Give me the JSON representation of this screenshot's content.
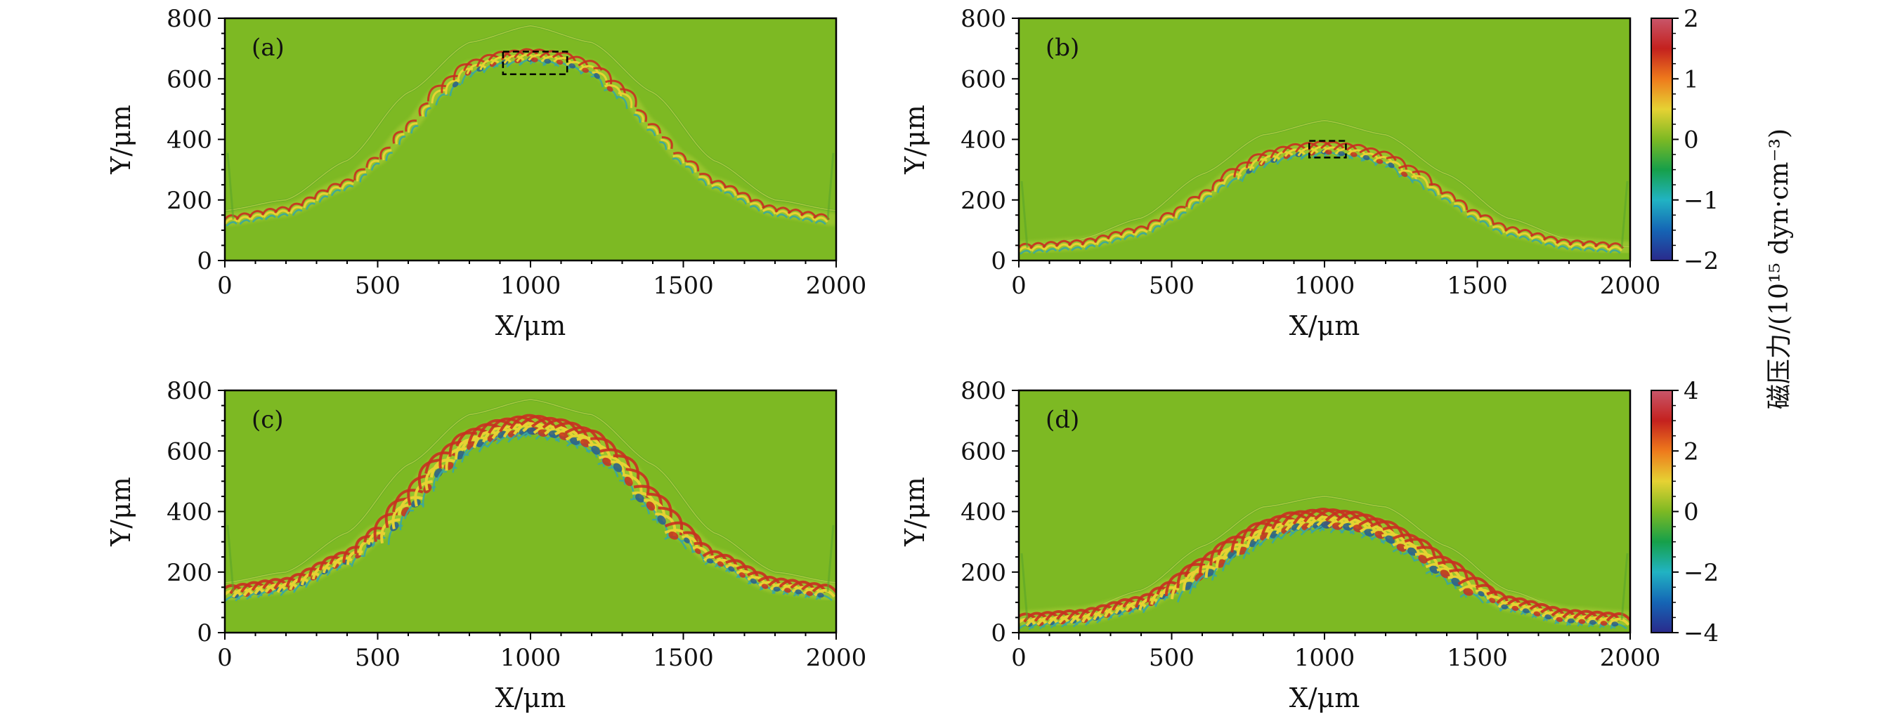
{
  "colors": {
    "background": "#7db923",
    "front": "#e6d233",
    "frontDark": "#2a5e8a",
    "frontRed": "#c83020",
    "frontCyan": "#3aa7a0",
    "cbStops": [
      "#2a2a8c",
      "#1565b5",
      "#21b3c3",
      "#16a04a",
      "#7db923",
      "#e6d233",
      "#ee7a1c",
      "#c4211e",
      "#c8566a"
    ]
  },
  "chart_data": [
    {
      "type": "heatmap",
      "panel": "(a)",
      "xlabel": "X/μm",
      "ylabel": "Y/μm",
      "xlim": [
        0,
        2000
      ],
      "ylim": [
        0,
        800
      ],
      "xticks": [
        "0",
        "500",
        "1000",
        "1500",
        "2000"
      ],
      "yticks": [
        "0",
        "200",
        "400",
        "600",
        "800"
      ],
      "interface": {
        "x": [
          0,
          200,
          400,
          500,
          600,
          700,
          800,
          900,
          1000,
          1100,
          1200,
          1300,
          1400,
          1500,
          1600,
          1800,
          2000
        ],
        "y": [
          135,
          165,
          255,
          335,
          440,
          560,
          640,
          670,
          680,
          670,
          640,
          560,
          440,
          335,
          255,
          165,
          135
        ]
      },
      "shock": {
        "x": [
          0,
          200,
          400,
          600,
          800,
          1000,
          1200,
          1400,
          1600,
          1800,
          2000
        ],
        "y": [
          165,
          200,
          330,
          555,
          720,
          775,
          720,
          555,
          330,
          200,
          165
        ]
      },
      "marker_box": {
        "x": [
          910,
          1120
        ],
        "y": [
          615,
          690
        ]
      },
      "colorbar": {
        "ticks": [
          "2",
          "1",
          "0",
          "−1",
          "−2"
        ],
        "range": [
          -2,
          2
        ]
      }
    },
    {
      "type": "heatmap",
      "panel": "(b)",
      "xlabel": "X/μm",
      "ylabel": "Y/μm",
      "xlim": [
        0,
        2000
      ],
      "ylim": [
        0,
        800
      ],
      "xticks": [
        "0",
        "500",
        "1000",
        "1500",
        "2000"
      ],
      "yticks": [
        "0",
        "200",
        "400",
        "600",
        "800"
      ],
      "interface": {
        "x": [
          0,
          200,
          400,
          500,
          600,
          700,
          800,
          900,
          1000,
          1100,
          1200,
          1300,
          1400,
          1500,
          1600,
          1800,
          2000
        ],
        "y": [
          42,
          55,
          100,
          150,
          215,
          285,
          340,
          365,
          375,
          365,
          340,
          285,
          215,
          150,
          100,
          55,
          42
        ]
      },
      "shock": {
        "x": [
          0,
          200,
          400,
          600,
          800,
          1000,
          1200,
          1400,
          1600,
          1800,
          2000
        ],
        "y": [
          45,
          70,
          140,
          285,
          415,
          462,
          415,
          285,
          140,
          70,
          45
        ]
      },
      "marker_box": {
        "x": [
          950,
          1070
        ],
        "y": [
          340,
          395
        ]
      },
      "colorbar": {
        "ticks": [
          "2",
          "1",
          "0",
          "−1",
          "−2"
        ],
        "range": [
          -2,
          2
        ]
      }
    },
    {
      "type": "heatmap",
      "panel": "(c)",
      "xlabel": "X/μm",
      "ylabel": "Y/μm",
      "xlim": [
        0,
        2000
      ],
      "ylim": [
        0,
        800
      ],
      "xticks": [
        "0",
        "500",
        "1000",
        "1500",
        "2000"
      ],
      "yticks": [
        "0",
        "200",
        "400",
        "600",
        "800"
      ],
      "interface": {
        "x": [
          0,
          200,
          400,
          500,
          600,
          700,
          800,
          900,
          1000,
          1100,
          1200,
          1300,
          1400,
          1500,
          1600,
          1800,
          2000
        ],
        "y": [
          135,
          160,
          250,
          330,
          440,
          560,
          640,
          675,
          690,
          675,
          640,
          560,
          440,
          330,
          250,
          160,
          135
        ]
      },
      "shock": {
        "x": [
          0,
          200,
          400,
          600,
          800,
          1000,
          1200,
          1400,
          1600,
          1800,
          2000
        ],
        "y": [
          165,
          200,
          330,
          555,
          720,
          770,
          720,
          555,
          330,
          200,
          165
        ]
      },
      "colorbar": {
        "ticks": [
          "4",
          "2",
          "0",
          "−2",
          "−4"
        ],
        "range": [
          -4,
          4
        ]
      }
    },
    {
      "type": "heatmap",
      "panel": "(d)",
      "xlabel": "X/μm",
      "ylabel": "Y/μm",
      "xlim": [
        0,
        2000
      ],
      "ylim": [
        0,
        800
      ],
      "xticks": [
        "0",
        "500",
        "1000",
        "1500",
        "2000"
      ],
      "yticks": [
        "0",
        "200",
        "400",
        "600",
        "800"
      ],
      "interface": {
        "x": [
          0,
          200,
          400,
          500,
          600,
          700,
          800,
          900,
          1000,
          1100,
          1200,
          1300,
          1400,
          1500,
          1600,
          1800,
          2000
        ],
        "y": [
          42,
          55,
          100,
          150,
          215,
          285,
          340,
          370,
          380,
          370,
          340,
          285,
          215,
          150,
          100,
          55,
          42
        ]
      },
      "shock": {
        "x": [
          0,
          200,
          400,
          600,
          800,
          1000,
          1200,
          1400,
          1600,
          1800,
          2000
        ],
        "y": [
          45,
          70,
          140,
          285,
          415,
          450,
          415,
          285,
          140,
          70,
          45
        ]
      },
      "colorbar": {
        "ticks": [
          "4",
          "2",
          "0",
          "−2",
          "−4"
        ],
        "range": [
          -4,
          4
        ]
      }
    }
  ],
  "colorbar_label": "磁压力/(10¹⁵ dyn·cm⁻³)"
}
